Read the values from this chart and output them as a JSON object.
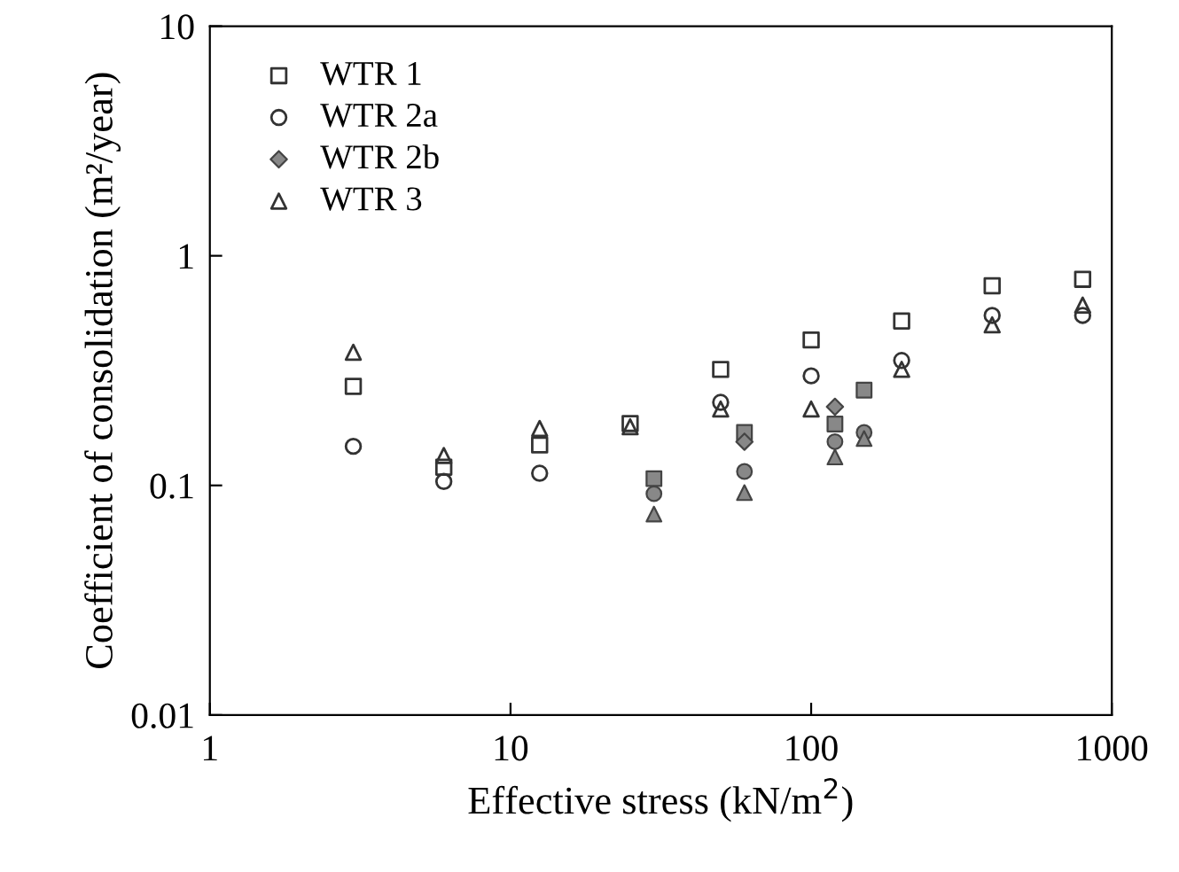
{
  "chart_data": {
    "type": "scatter",
    "xlabel": "Effective stress (kN/m$^{2}$)",
    "ylabel": "Coefficient of consolidation (m²/year)",
    "log": "xy",
    "xlim": [
      1,
      1000
    ],
    "ylim": [
      0.01,
      10
    ],
    "xticks": [
      1,
      10,
      100,
      1000
    ],
    "yticks": [
      0.01,
      0.1,
      1,
      10
    ],
    "grid": false,
    "legend": "top left",
    "series": [
      {
        "name": "WTR 1",
        "marker": "square",
        "color": "#333333",
        "x": [
          3,
          6,
          12.5,
          25,
          50,
          100,
          200,
          400,
          800
        ],
        "values": [
          0.27,
          0.12,
          0.15,
          0.186,
          0.32,
          0.43,
          0.52,
          0.74,
          0.79
        ]
      },
      {
        "name": "WTR 2a",
        "marker": "circle",
        "color": "#333333",
        "x": [
          3,
          6,
          12.5,
          50,
          100,
          200,
          400,
          800
        ],
        "values": [
          0.148,
          0.104,
          0.113,
          0.23,
          0.3,
          0.35,
          0.55,
          0.55
        ]
      },
      {
        "name": "WTR 2b",
        "marker": "diamond",
        "color": "#888888",
        "x": [
          60,
          120
        ],
        "values": [
          0.155,
          0.22
        ]
      },
      {
        "name": "WTR 3",
        "marker": "triangle",
        "color": "#333333",
        "x": [
          3,
          6,
          12.5,
          25,
          50,
          100,
          200,
          400,
          800
        ],
        "values": [
          0.38,
          0.135,
          0.177,
          0.18,
          0.215,
          0.215,
          0.32,
          0.5,
          0.61
        ]
      },
      {
        "marker": "square",
        "color": "#888888",
        "x": [
          30,
          60,
          120,
          150
        ],
        "values": [
          0.107,
          0.17,
          0.185,
          0.26
        ]
      },
      {
        "marker": "circle",
        "color": "#888888",
        "x": [
          30,
          60,
          120,
          150
        ],
        "values": [
          0.092,
          0.115,
          0.155,
          0.17
        ]
      },
      {
        "marker": "triangle",
        "color": "#888888",
        "x": [
          30,
          60,
          120,
          150
        ],
        "values": [
          0.075,
          0.093,
          0.133,
          0.16
        ]
      }
    ]
  }
}
